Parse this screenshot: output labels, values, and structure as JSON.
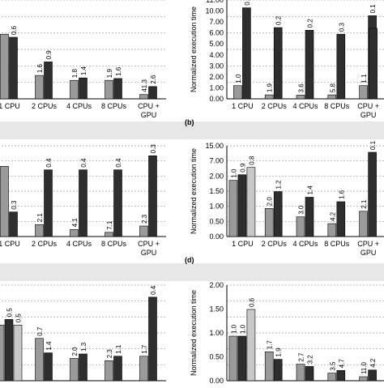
{
  "chart_data": [
    {
      "type": "bar",
      "panel": "",
      "categories": [
        "1 CPU",
        "2 CPUs",
        "4 CPUs",
        "8 CPUs",
        "CPU +\nGPU"
      ],
      "series_colors": [
        "#9a9a9a",
        "#2e2e2e"
      ],
      "ylabel": "",
      "ylim": [
        0,
        1.5
      ],
      "show_yticks": false,
      "values": [
        [
          1.05,
          1.0
        ],
        [
          0.38,
          0.6
        ],
        [
          0.3,
          0.34
        ],
        [
          0.3,
          0.33
        ],
        [
          0.07,
          0.2
        ]
      ],
      "labels": [
        [
          "",
          "0.6"
        ],
        [
          "1.6",
          "0.9"
        ],
        [
          "1.8",
          "1.4"
        ],
        [
          "1.9",
          "1.6"
        ],
        [
          "41.3",
          "2.6"
        ]
      ]
    },
    {
      "type": "bar",
      "panel": "",
      "categories": [
        "1 CPU",
        "2 CPUs",
        "4 CPUs",
        "8 CPUs",
        "CPU +\nGPU"
      ],
      "series_colors": [
        "#9a9a9a",
        "#2e2e2e"
      ],
      "ylabel": "Normalized execution time",
      "ylim": [
        0,
        7
      ],
      "axis_break": true,
      "yticks": [
        "0.00",
        "1.00",
        "2.00",
        "3.00",
        "4.00",
        "5.00",
        "6.00",
        "7.00",
        "10.00",
        "11.00"
      ],
      "values": [
        [
          1.0,
          6.9
        ],
        [
          0.3,
          5.4
        ],
        [
          0.28,
          5.2
        ],
        [
          0.3,
          4.9
        ],
        [
          1.0,
          6.3
        ]
      ],
      "labels": [
        [
          "1.0",
          "0.1"
        ],
        [
          "1.9",
          "0.2"
        ],
        [
          "3.6",
          "0.2"
        ],
        [
          "5.8",
          "0.3"
        ],
        [
          "1.1",
          "0.1"
        ]
      ],
      "extra_bar": {
        "x_index": 4,
        "value": 10.5
      }
    },
    {
      "type": "bar",
      "panel": "",
      "categories": [
        "1 CPU",
        "2 CPUs",
        "4 CPUs",
        "8 CPUs",
        "CPU +\nGPU"
      ],
      "series_colors": [
        "#9a9a9a",
        "#2e2e2e",
        "#c8c8c8"
      ],
      "ylabel": "",
      "ylim": [
        0,
        1.2
      ],
      "show_yticks": false,
      "values": [
        [
          1.0,
          0.35
        ],
        [
          0.17,
          0.95
        ],
        [
          0.1,
          0.95
        ],
        [
          0.06,
          0.95
        ],
        [
          0.15,
          1.15
        ]
      ],
      "labels": [
        [
          "",
          "0.3"
        ],
        [
          "2.1",
          "0.4"
        ],
        [
          "4.1",
          "0.4"
        ],
        [
          "7.1",
          "0.4"
        ],
        [
          "2.3",
          "0.3"
        ]
      ],
      "extra_light": {
        "x_index": 0,
        "value": 0.35,
        "label": "1.2"
      }
    },
    {
      "type": "bar",
      "panel": "(d)",
      "categories": [
        "1 CPU",
        "2 CPUs",
        "4 CPUs",
        "8 CPUs",
        "CPU +\nGPU"
      ],
      "series_colors": [
        "#9a9a9a",
        "#2e2e2e",
        "#c8c8c8"
      ],
      "ylabel": "Normalized execution time",
      "ylim": [
        0,
        1.5
      ],
      "axis_break": true,
      "yticks": [
        "0.00",
        "0.50",
        "1.00",
        "1.50",
        "2.00",
        "7.00",
        "15.00"
      ],
      "values": [
        [
          1.0,
          1.1,
          1.23
        ],
        [
          0.5,
          0.8,
          0
        ],
        [
          0.35,
          0.7,
          0
        ],
        [
          0.23,
          0.62,
          0
        ],
        [
          0.45,
          1.5,
          0
        ]
      ],
      "labels": [
        [
          "1.0",
          "0.9",
          "0.8"
        ],
        [
          "2.0",
          "1.2",
          ""
        ],
        [
          "3.0",
          "1.4",
          ""
        ],
        [
          "4.2",
          "1.6",
          ""
        ],
        [
          "2.1",
          "0.1",
          ""
        ]
      ]
    },
    {
      "type": "bar",
      "panel": "",
      "categories": [
        "",
        "",
        "",
        "",
        ""
      ],
      "series_colors": [
        "#9a9a9a",
        "#2e2e2e",
        "#c8c8c8"
      ],
      "ylabel": "",
      "ylim": [
        0,
        0.8
      ],
      "show_yticks": false,
      "values": [
        [
          0.5,
          0.55,
          0.5
        ],
        [
          0.38,
          0.25,
          0
        ],
        [
          0.2,
          0.24,
          0
        ],
        [
          0.18,
          0.22,
          0
        ],
        [
          0.22,
          0.75,
          0
        ]
      ],
      "labels": [
        [
          "",
          "0.5",
          "0.5"
        ],
        [
          "0.7",
          "1.4",
          ""
        ],
        [
          "2.0",
          "1.3",
          ""
        ],
        [
          "2.3",
          "1.1",
          ""
        ],
        [
          "1.7",
          "0.4",
          ""
        ]
      ]
    },
    {
      "type": "bar",
      "panel": "",
      "categories": [
        "",
        "",
        "",
        "",
        ""
      ],
      "series_colors": [
        "#9a9a9a",
        "#2e2e2e",
        "#c8c8c8"
      ],
      "ylabel": "Normalized execution time",
      "ylim": [
        0,
        2
      ],
      "yticks": [
        "0.00",
        "0.50",
        "1.00",
        "1.50",
        "2.00"
      ],
      "values": [
        [
          1.0,
          1.0,
          1.6
        ],
        [
          0.65,
          0.48,
          0
        ],
        [
          0.37,
          0.32,
          0
        ],
        [
          0.17,
          0.23,
          0
        ],
        [
          0.09,
          0.24,
          0
        ]
      ],
      "labels": [
        [
          "1.0",
          "1.0",
          "0.6"
        ],
        [
          "1.7",
          "1.9",
          ""
        ],
        [
          "2.7",
          "3.2",
          ""
        ],
        [
          "3.5",
          "4.7",
          ""
        ],
        [
          "11.0",
          "4.2",
          ""
        ]
      ]
    }
  ],
  "panel_labels": {
    "b": "(b)"
  }
}
